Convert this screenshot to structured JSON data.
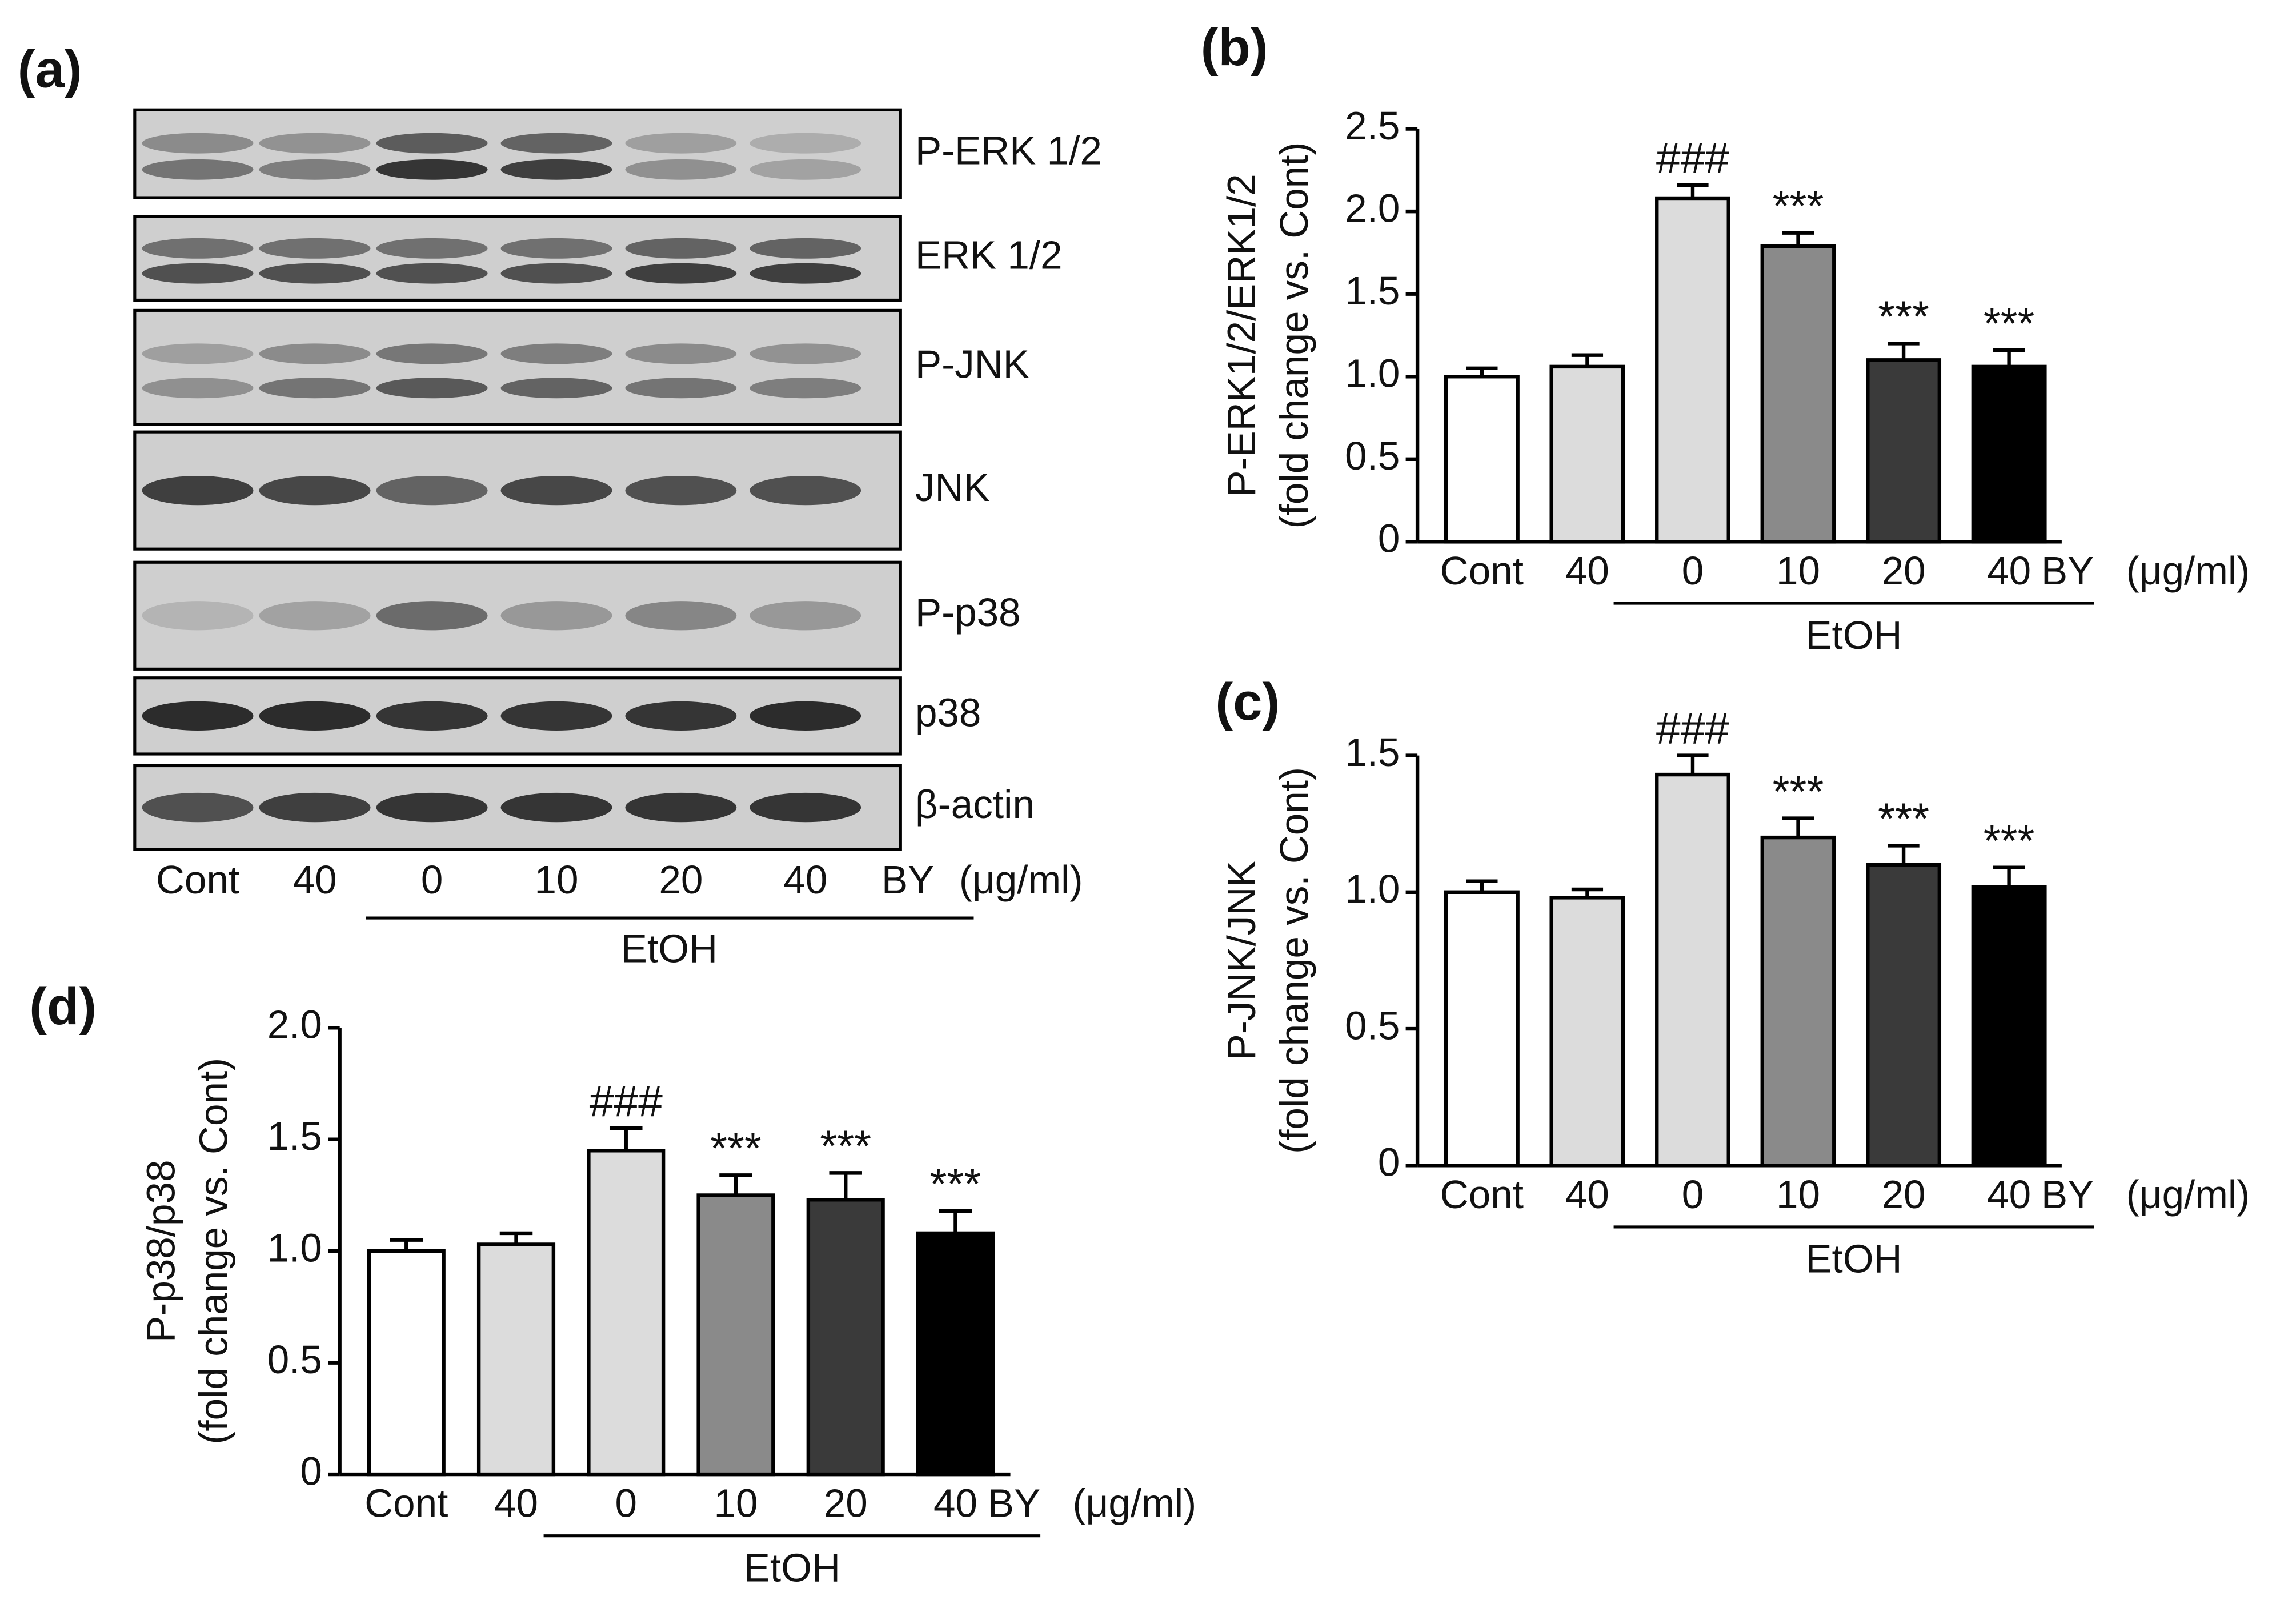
{
  "blot": {
    "panel_label": "(a)",
    "rows": [
      "P-ERK 1/2",
      "ERK 1/2",
      "P-JNK",
      "JNK",
      "P-p38",
      "p38",
      "β-actin"
    ],
    "lanes": [
      "Cont",
      "40",
      "0",
      "10",
      "20",
      "40"
    ],
    "unit_labels": [
      "BY",
      "(μg/ml)"
    ],
    "group_label": "EtOH"
  },
  "chart_data": [
    {
      "type": "bar",
      "panel_label": "(b)",
      "ylabel": "P-ERK1/2/ERK1/2",
      "ylabel_sub": "(fold change vs. Cont)",
      "categories": [
        "Cont",
        "40",
        "0",
        "10",
        "20",
        "40"
      ],
      "values": [
        1.0,
        1.06,
        2.08,
        1.79,
        1.1,
        1.06
      ],
      "errors": [
        0.05,
        0.07,
        0.08,
        0.08,
        0.1,
        0.1
      ],
      "colors": [
        "#ffffff",
        "#dcdcdc",
        "#dcdcdc",
        "#8a8a8a",
        "#3a3a3a",
        "#000000"
      ],
      "annotations": [
        null,
        null,
        "###",
        "***",
        "***",
        "***"
      ],
      "unit_labels": [
        "BY",
        "(μg/ml)"
      ],
      "group_label": "EtOH",
      "ylim": [
        0,
        2.5
      ],
      "yticks": [
        0,
        0.5,
        {
          "value": 1,
          "label": "1.0"
        },
        1.5,
        {
          "value": 2,
          "label": "2.0"
        },
        2.5
      ]
    },
    {
      "type": "bar",
      "panel_label": "(c)",
      "ylabel": "P-JNK/JNK",
      "ylabel_sub": "(fold change vs. Cont)",
      "categories": [
        "Cont",
        "40",
        "0",
        "10",
        "20",
        "40"
      ],
      "values": [
        1.0,
        0.98,
        1.43,
        1.2,
        1.1,
        1.02
      ],
      "errors": [
        0.04,
        0.03,
        0.07,
        0.07,
        0.07,
        0.07
      ],
      "colors": [
        "#ffffff",
        "#dcdcdc",
        "#dcdcdc",
        "#8a8a8a",
        "#3a3a3a",
        "#000000"
      ],
      "annotations": [
        null,
        null,
        "###",
        "***",
        "***",
        "***"
      ],
      "unit_labels": [
        "BY",
        "(μg/ml)"
      ],
      "group_label": "EtOH",
      "ylim": [
        0,
        1.5
      ],
      "yticks": [
        0,
        0.5,
        {
          "value": 1,
          "label": "1.0"
        },
        1.5
      ]
    },
    {
      "type": "bar",
      "panel_label": "(d)",
      "ylabel": "P-p38/p38",
      "ylabel_sub": "(fold change vs. Cont)",
      "categories": [
        "Cont",
        "40",
        "0",
        "10",
        "20",
        "40"
      ],
      "values": [
        1.0,
        1.03,
        1.45,
        1.25,
        1.23,
        1.08
      ],
      "errors": [
        0.05,
        0.05,
        0.1,
        0.09,
        0.12,
        0.1
      ],
      "colors": [
        "#ffffff",
        "#dcdcdc",
        "#dcdcdc",
        "#8a8a8a",
        "#3a3a3a",
        "#000000"
      ],
      "annotations": [
        null,
        null,
        "###",
        "***",
        "***",
        "***"
      ],
      "unit_labels": [
        "BY",
        "(μg/ml)"
      ],
      "group_label": "EtOH",
      "ylim": [
        0,
        2.0
      ],
      "yticks": [
        0,
        0.5,
        {
          "value": 1,
          "label": "1.0"
        },
        1.5,
        {
          "value": 2,
          "label": "2.0"
        }
      ]
    }
  ]
}
